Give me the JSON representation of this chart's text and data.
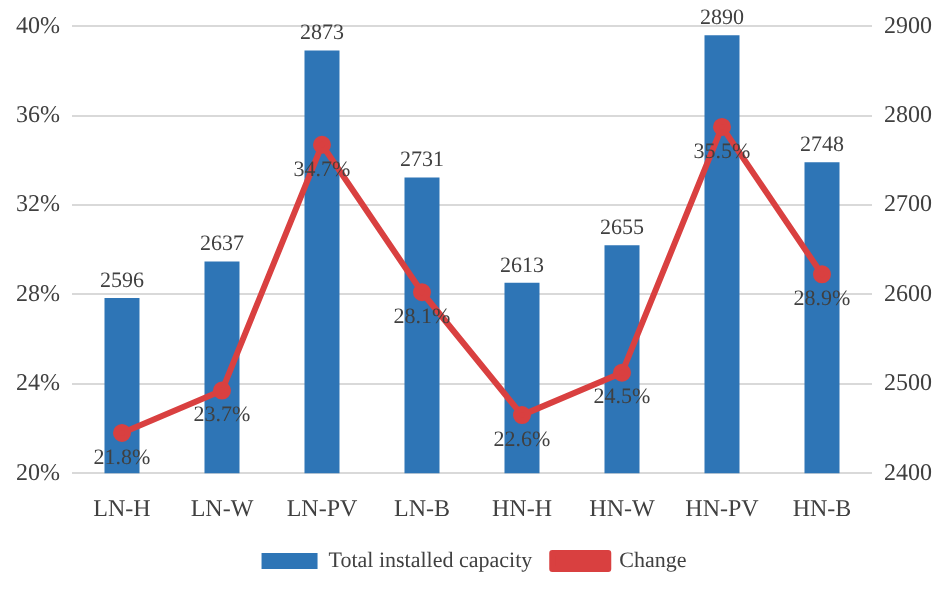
{
  "chart_data": {
    "type": "bar",
    "categories": [
      "LN-H",
      "LN-W",
      "LN-PV",
      "LN-B",
      "HN-H",
      "HN-W",
      "HN-PV",
      "HN-B"
    ],
    "series": [
      {
        "name": "Total installed capacity",
        "axis": "y2",
        "color": "#2e75b6",
        "values": [
          2596,
          2637,
          2873,
          2731,
          2613,
          2655,
          2890,
          2748
        ]
      },
      {
        "name": "Change",
        "type": "line",
        "axis": "y",
        "color": "#d94040",
        "value_labels": [
          "21.8%",
          "23.7%",
          "34.7%",
          "28.1%",
          "22.6%",
          "24.5%",
          "35.5%",
          "28.9%"
        ],
        "values": [
          21.8,
          23.7,
          34.7,
          28.1,
          22.6,
          24.5,
          35.5,
          28.9
        ]
      }
    ],
    "ylim": [
      20,
      40
    ],
    "yticks": [
      {
        "value": 20,
        "label": "20%"
      },
      {
        "value": 24,
        "label": "24%"
      },
      {
        "value": 28,
        "label": "28%"
      },
      {
        "value": 32,
        "label": "32%"
      },
      {
        "value": 36,
        "label": "36%"
      },
      {
        "value": 40,
        "label": "40%"
      }
    ],
    "y2lim": [
      2400,
      2900
    ],
    "y2ticks": [
      2400,
      2500,
      2600,
      2700,
      2800,
      2900
    ],
    "data_labels": true,
    "grid": "y",
    "legend": "bottom",
    "marker": "circle",
    "line_style": "solid"
  }
}
